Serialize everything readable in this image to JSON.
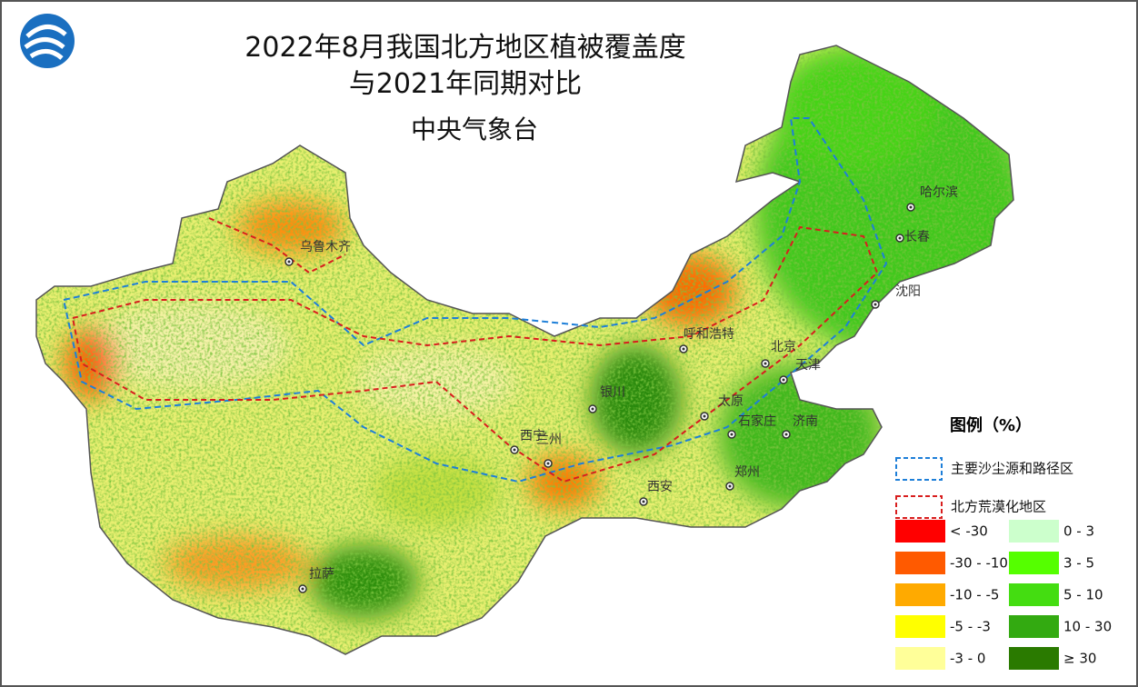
{
  "header": {
    "title_line1": "2022年8月我国北方地区植被覆盖度",
    "title_line2": "与2021年同期对比",
    "subtitle": "中央气象台"
  },
  "legend": {
    "title": "图例（%）",
    "regions": [
      {
        "label": "主要沙尘源和路径区",
        "color": "#1e7fd8"
      },
      {
        "label": "北方荒漠化地区",
        "color": "#d81e1e"
      }
    ],
    "items": [
      {
        "label": "< -30",
        "color": "#ff0000"
      },
      {
        "label": "-30 - -10",
        "color": "#ff5a00"
      },
      {
        "label": "-10 - -5",
        "color": "#ffaa00"
      },
      {
        "label": "-5 - -3",
        "color": "#ffff00"
      },
      {
        "label": "-3 - 0",
        "color": "#ffff99"
      },
      {
        "label": "0 - 3",
        "color": "#ccffcc"
      },
      {
        "label": "3 - 5",
        "color": "#55ff00"
      },
      {
        "label": "5 - 10",
        "color": "#44dd11"
      },
      {
        "label": "10 - 30",
        "color": "#33aa11"
      },
      {
        "label": "≥ 30",
        "color": "#2a7a00"
      }
    ]
  },
  "cities": [
    "乌鲁木齐",
    "哈尔滨",
    "长春",
    "沈阳",
    "呼和浩特",
    "北京",
    "天津",
    "太原",
    "石家庄",
    "济南",
    "郑州",
    "西安",
    "银川",
    "兰州",
    "西宁",
    "拉萨"
  ]
}
